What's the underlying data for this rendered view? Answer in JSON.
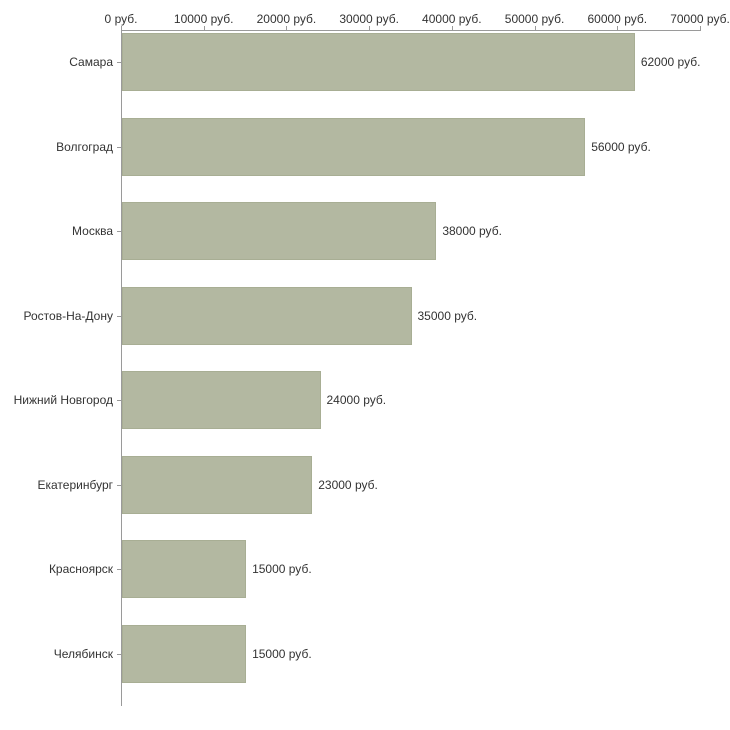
{
  "chart_data": {
    "type": "bar",
    "orientation": "horizontal",
    "title": "",
    "xlabel": "",
    "ylabel": "",
    "categories": [
      "Самара",
      "Волгоград",
      "Москва",
      "Ростов-На-Дону",
      "Нижний Новгород",
      "Екатеринбург",
      "Красноярск",
      "Челябинск"
    ],
    "values": [
      62000,
      56000,
      38000,
      35000,
      24000,
      23000,
      15000,
      15000
    ],
    "value_labels": [
      "62000 руб.",
      "56000 руб.",
      "38000 руб.",
      "35000 руб.",
      "24000 руб.",
      "23000 руб.",
      "15000 руб.",
      "15000 руб."
    ],
    "x_ticks": [
      0,
      10000,
      20000,
      30000,
      40000,
      50000,
      60000,
      70000
    ],
    "x_tick_labels": [
      "0 руб.",
      "10000 руб.",
      "20000 руб.",
      "30000 руб.",
      "40000 руб.",
      "50000 руб.",
      "60000 руб.",
      "70000 руб."
    ],
    "xlim": [
      0,
      70000
    ],
    "grid": false,
    "legend": null,
    "bar_color": "#b3b8a1",
    "bar_border_color": "#a8ae94",
    "axis_color": "#9a9a9a",
    "text_color": "#333333",
    "background": "#ffffff"
  }
}
